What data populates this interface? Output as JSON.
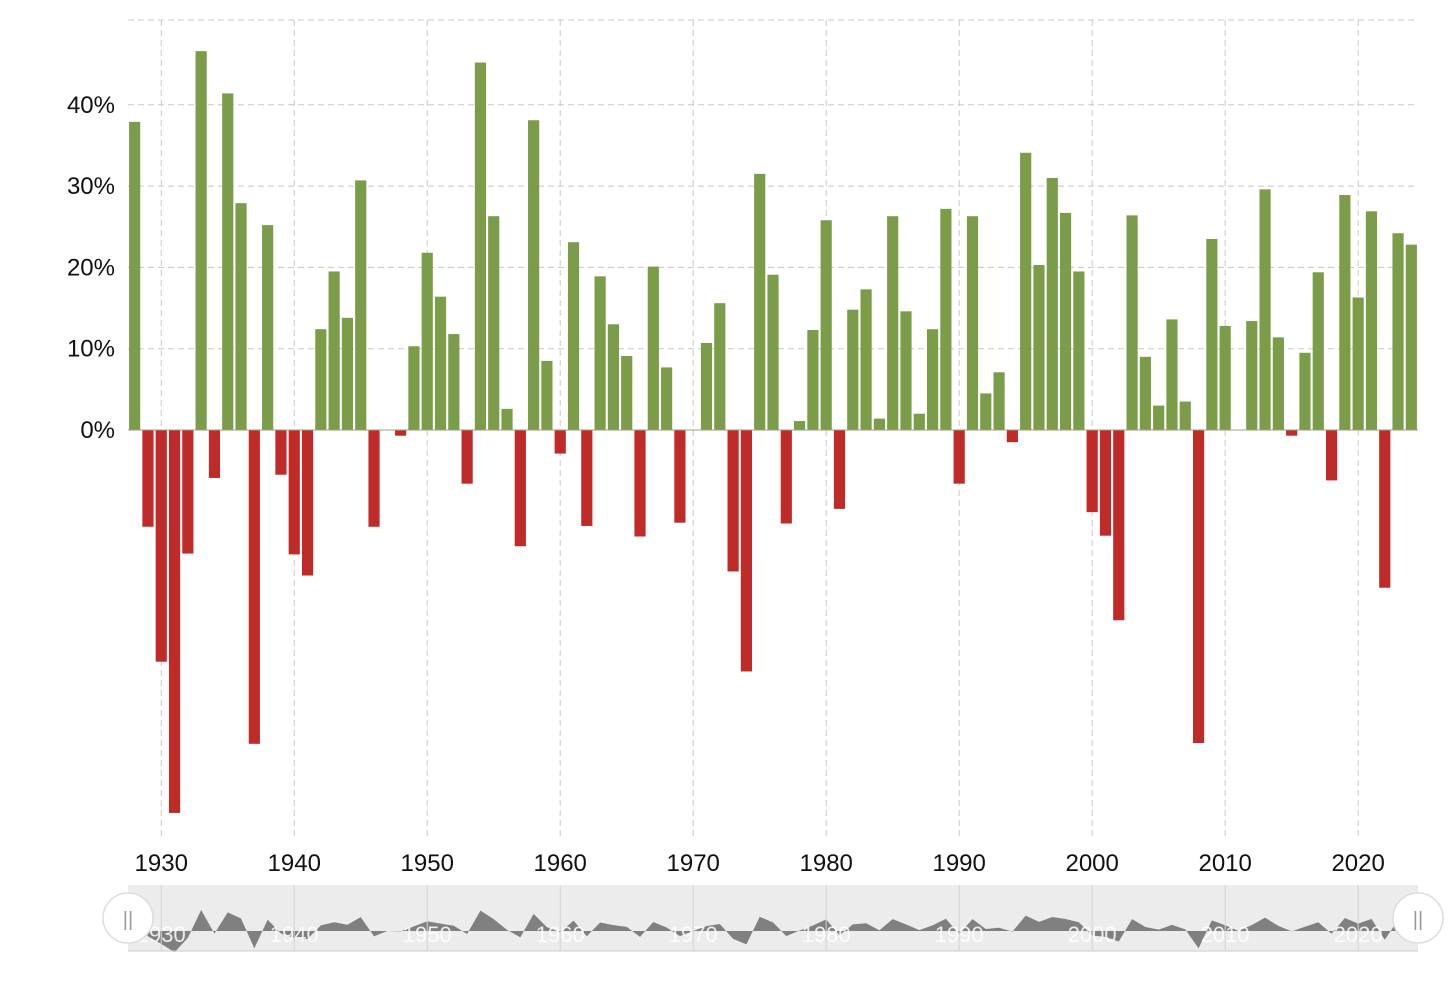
{
  "chart_data": {
    "type": "bar",
    "title": "",
    "xlabel": "",
    "ylabel": "",
    "x_start": 1928,
    "x_ticks": [
      1930,
      1940,
      1950,
      1960,
      1970,
      1980,
      1990,
      2000,
      2010,
      2020
    ],
    "x_tick_labels": [
      "1930",
      "1940",
      "1950",
      "1960",
      "1970",
      "1980",
      "1990",
      "2000",
      "2010",
      "2020"
    ],
    "y_ticks": [
      0,
      10,
      20,
      30,
      40
    ],
    "y_tick_labels": [
      "0%",
      "10%",
      "20%",
      "30%",
      "40%"
    ],
    "ylim": [
      -48,
      50
    ],
    "xlim": [
      1927.5,
      2024.5
    ],
    "grid": true,
    "legend": "none",
    "series": [
      {
        "values": [
          37.9,
          -11.9,
          -28.5,
          -47.1,
          -15.2,
          46.6,
          -5.9,
          41.4,
          27.9,
          -38.6,
          25.2,
          -5.5,
          -15.3,
          -17.9,
          12.4,
          19.5,
          13.8,
          30.7,
          -11.9,
          0.0,
          -0.7,
          10.3,
          21.8,
          16.4,
          11.8,
          -6.6,
          45.2,
          26.3,
          2.6,
          -14.3,
          38.1,
          8.5,
          -2.9,
          23.1,
          -11.8,
          18.9,
          13.0,
          9.1,
          -13.1,
          20.1,
          7.7,
          -11.4,
          0.0,
          10.7,
          15.6,
          -17.4,
          -29.7,
          31.5,
          19.1,
          -11.5,
          1.1,
          12.3,
          25.8,
          -9.7,
          14.8,
          17.3,
          1.4,
          26.3,
          14.6,
          2.0,
          12.4,
          27.2,
          -6.6,
          26.3,
          4.5,
          7.1,
          -1.5,
          34.1,
          20.3,
          31.0,
          26.7,
          19.5,
          -10.1,
          -13.0,
          -23.4,
          26.4,
          9.0,
          3.0,
          13.6,
          3.5,
          -38.5,
          23.5,
          12.8,
          0.0,
          13.4,
          29.6,
          11.4,
          -0.7,
          9.5,
          19.4,
          -6.2,
          28.9,
          16.3,
          26.9,
          -19.4,
          24.2,
          22.8
        ]
      }
    ],
    "colors": {
      "positive": "#7b9c49",
      "negative": "#bf2b29",
      "grid": "#c8c8c8",
      "navigator_bg": "#ececec",
      "navigator_area": "#808080",
      "navigator_text": "#ffffff",
      "handle_grip": "#9a9a9a"
    }
  },
  "navigator": {
    "tick_labels": [
      "1930",
      "1940",
      "1950",
      "1960",
      "1970",
      "1980",
      "1990",
      "2000",
      "2010",
      "2020"
    ],
    "left_handle_grip": "||",
    "right_handle_grip": "||"
  }
}
